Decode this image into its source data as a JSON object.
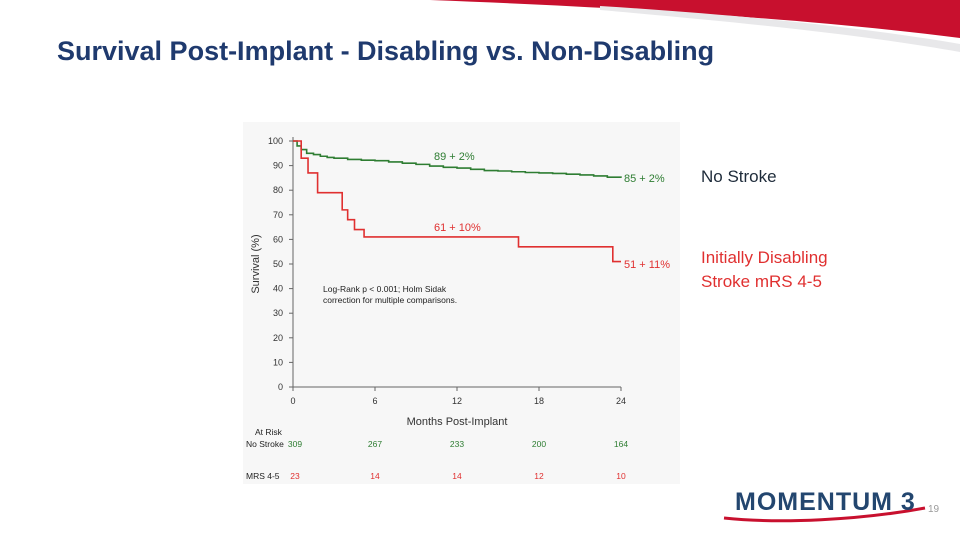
{
  "slide": {
    "title": "Survival Post-Implant - Disabling vs. Non-Disabling",
    "page_number": "19",
    "logo_text": "MOMENTUM 3",
    "right_labels": {
      "no_stroke": "No Stroke",
      "disabling_line1": "Initially Disabling",
      "disabling_line2": "Stroke mRS 4-5"
    }
  },
  "colors": {
    "no_stroke": "#2e7d32",
    "disabling": "#e03030",
    "title": "#1f3a6e",
    "banner": "#c8102e"
  },
  "chart_data": {
    "type": "line",
    "title": "",
    "xlabel": "Months Post-Implant",
    "ylabel": "Survival (%)",
    "xlim": [
      0,
      24
    ],
    "ylim": [
      0,
      100
    ],
    "x_ticks": [
      "0",
      "6",
      "12",
      "18",
      "24"
    ],
    "y_ticks": [
      "0",
      "10",
      "20",
      "30",
      "40",
      "50",
      "60",
      "70",
      "80",
      "90",
      "100"
    ],
    "series": [
      {
        "name": "No Stroke",
        "color": "#2e7d32",
        "x": [
          0,
          0.3,
          0.6,
          1,
          1.5,
          2,
          2.5,
          3,
          4,
          5,
          6,
          7,
          8,
          9,
          10,
          11,
          12,
          13,
          14,
          15,
          16,
          17,
          18,
          19,
          20,
          21,
          22,
          23,
          24
        ],
        "y": [
          100,
          98,
          96.5,
          95,
          94.5,
          93.8,
          93.3,
          93,
          92.5,
          92.2,
          92,
          91.5,
          91,
          90.5,
          89.8,
          89.3,
          89,
          88.5,
          88,
          87.8,
          87.5,
          87.2,
          87,
          86.8,
          86.5,
          86.2,
          85.8,
          85.3,
          85
        ]
      },
      {
        "name": "Initially Disabling Stroke mRS 4-5",
        "color": "#e03030",
        "x": [
          0,
          0.6,
          1.1,
          1.8,
          3.6,
          4.0,
          4.5,
          5.2,
          16.5,
          23.4,
          24
        ],
        "y": [
          100,
          93,
          87,
          79,
          72,
          68,
          64,
          61,
          57,
          51,
          51
        ]
      }
    ],
    "annotations": [
      {
        "text": "89 + 2%",
        "series": "No Stroke",
        "at_x": 12
      },
      {
        "text": "85 + 2%",
        "series": "No Stroke",
        "at_x": 24
      },
      {
        "text": "61 + 10%",
        "series": "Initially Disabling Stroke mRS 4-5",
        "at_x": 12
      },
      {
        "text": "51 + 11%",
        "series": "Initially Disabling Stroke mRS 4-5",
        "at_x": 24
      }
    ],
    "stats_note": [
      "Log-Rank p < 0.001; Holm Sidak",
      "correction for multiple comparisons."
    ],
    "at_risk": {
      "heading": "At Risk",
      "rows": [
        {
          "label": "No Stroke",
          "values": [
            "309",
            "267",
            "233",
            "200",
            "164"
          ]
        },
        {
          "label": "MRS 4-5",
          "values": [
            "23",
            "14",
            "14",
            "12",
            "10"
          ]
        }
      ]
    }
  }
}
